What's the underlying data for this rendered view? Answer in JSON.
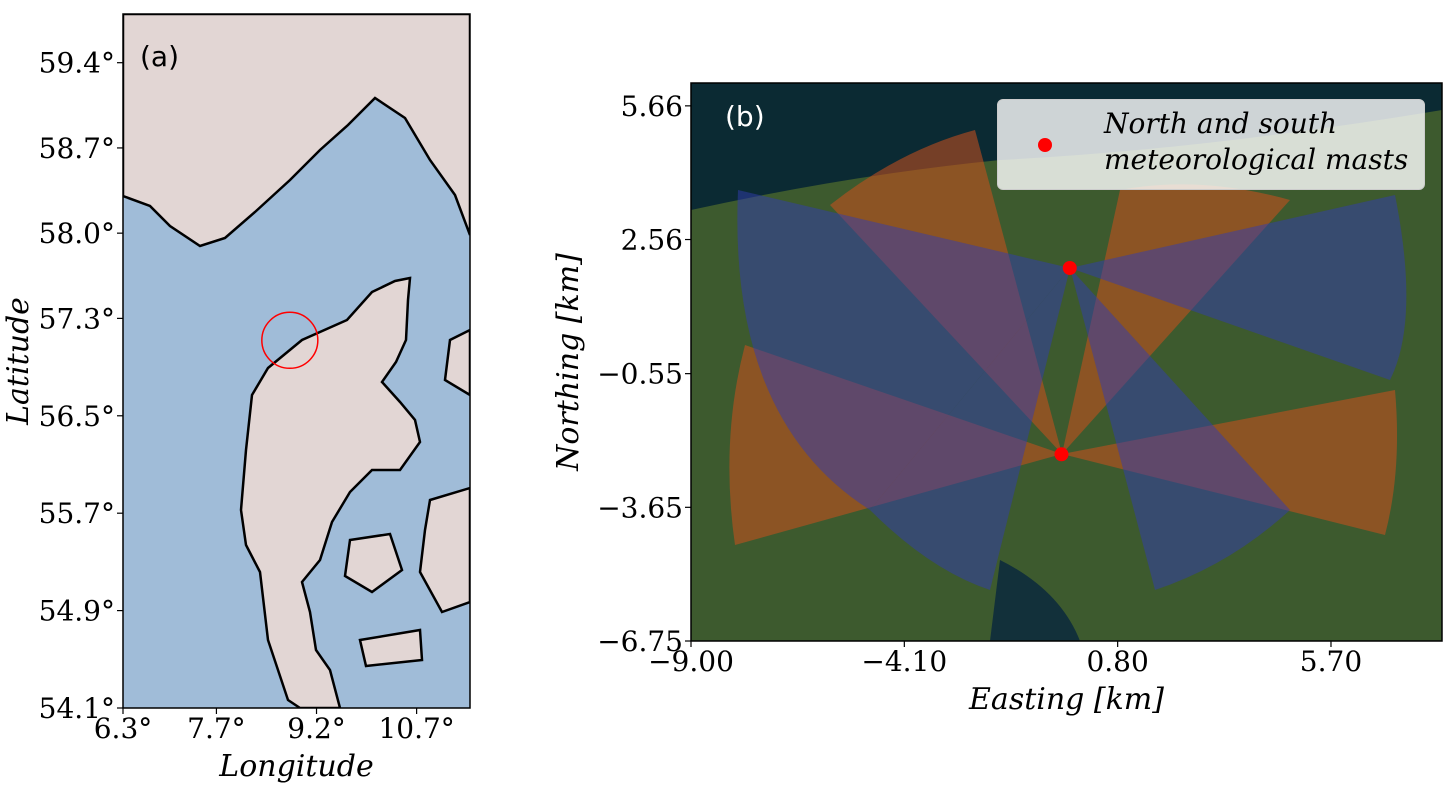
{
  "chart_data": [
    {
      "type": "map",
      "panel_label": "(a)",
      "xlabel": "Longitude",
      "ylabel": "Latitude",
      "xlim": [
        6.3,
        11.5
      ],
      "ylim": [
        54.1,
        59.8
      ],
      "xticks": [
        {
          "value": 6.3,
          "label": "6.3°"
        },
        {
          "value": 7.7,
          "label": "7.7°"
        },
        {
          "value": 9.2,
          "label": "9.2°"
        },
        {
          "value": 10.7,
          "label": "10.7°"
        }
      ],
      "yticks": [
        {
          "value": 54.1,
          "label": "54.1°"
        },
        {
          "value": 54.9,
          "label": "54.9°"
        },
        {
          "value": 55.7,
          "label": "55.7°"
        },
        {
          "value": 56.5,
          "label": "56.5°"
        },
        {
          "value": 57.3,
          "label": "57.3°"
        },
        {
          "value": 58.0,
          "label": "58.0°"
        },
        {
          "value": 58.7,
          "label": "58.7°"
        },
        {
          "value": 59.4,
          "label": "59.4°"
        }
      ],
      "highlight": {
        "x": 8.8,
        "y": 57.12,
        "color": "#ff0000"
      }
    },
    {
      "type": "scatter",
      "panel_label": "(b)",
      "xlabel": "Easting [km]",
      "ylabel": "Northing [km]",
      "xlim": [
        -9.0,
        8.25
      ],
      "ylim": [
        -6.75,
        6.19
      ],
      "xticks": [
        {
          "value": -9.0,
          "label": "−9.00"
        },
        {
          "value": -4.1,
          "label": "−4.10"
        },
        {
          "value": 0.8,
          "label": "0.80"
        },
        {
          "value": 5.7,
          "label": "5.70"
        }
      ],
      "yticks": [
        {
          "value": -6.75,
          "label": "−6.75"
        },
        {
          "value": -3.65,
          "label": "−3.65"
        },
        {
          "value": -0.55,
          "label": "−0.55"
        },
        {
          "value": 2.56,
          "label": "2.56"
        },
        {
          "value": 5.66,
          "label": "5.66"
        }
      ],
      "series": [
        {
          "name": "North and south meteorological masts",
          "color": "#ff0000",
          "x": [
            -0.3,
            -0.49
          ],
          "values": [
            1.9,
            -2.42
          ]
        }
      ],
      "legend": "upper right"
    }
  ]
}
